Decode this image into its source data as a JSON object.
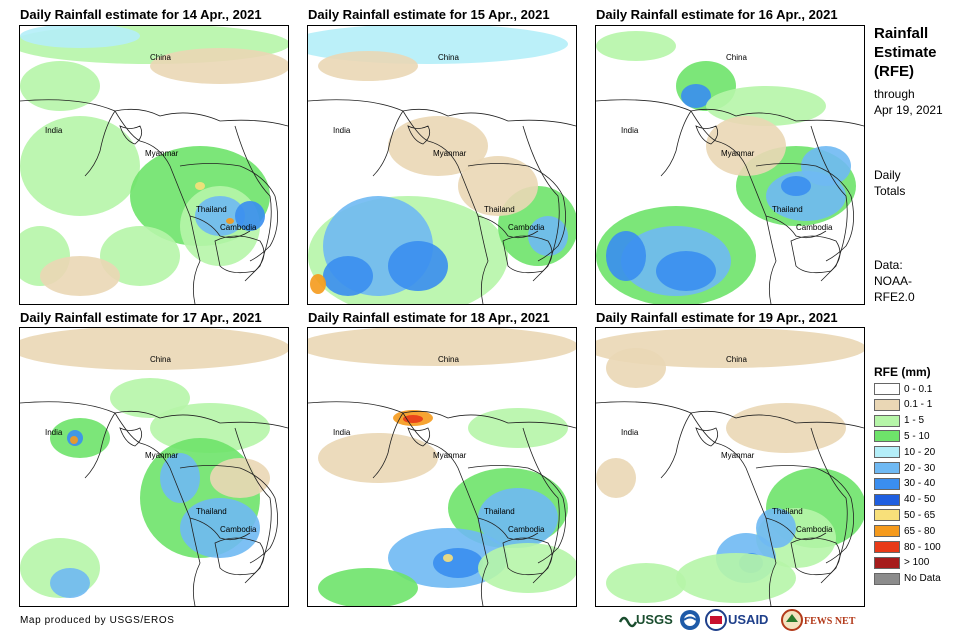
{
  "panels": [
    {
      "title": "Daily Rainfall estimate for 14 Apr., 2021",
      "labels": {
        "china": "China",
        "india": "India",
        "myanmar": "Myanmar",
        "thailand": "Thailand",
        "cambodia": "Cambodia"
      }
    },
    {
      "title": "Daily Rainfall estimate for 15 Apr., 2021",
      "labels": {
        "china": "China",
        "india": "India",
        "myanmar": "Myanmar",
        "thailand": "Thailand",
        "cambodia": "Cambodia"
      }
    },
    {
      "title": "Daily Rainfall estimate for 16 Apr., 2021",
      "labels": {
        "china": "China",
        "india": "India",
        "myanmar": "Myanmar",
        "thailand": "Thailand",
        "cambodia": "Cambodia"
      }
    },
    {
      "title": "Daily Rainfall estimate for 17 Apr., 2021",
      "labels": {
        "china": "China",
        "india": "India",
        "myanmar": "Myanmar",
        "thailand": "Thailand",
        "cambodia": "Cambodia"
      }
    },
    {
      "title": "Daily Rainfall estimate for 18 Apr., 2021",
      "labels": {
        "china": "China",
        "india": "India",
        "myanmar": "Myanmar",
        "thailand": "Thailand",
        "cambodia": "Cambodia"
      }
    },
    {
      "title": "Daily Rainfall estimate for 19 Apr., 2021",
      "labels": {
        "china": "China",
        "india": "India",
        "myanmar": "Myanmar",
        "thailand": "Thailand",
        "cambodia": "Cambodia"
      }
    }
  ],
  "sidebar": {
    "title_line1": "Rainfall",
    "title_line2": "Estimate",
    "title_line3": "(RFE)",
    "through": "through",
    "through_date": "Apr 19, 2021",
    "daily": "Daily",
    "totals": "Totals",
    "data_label": "Data:",
    "data_src1": "NOAA-",
    "data_src2": "RFE2.0"
  },
  "legend": {
    "title": "RFE (mm)",
    "items": [
      {
        "label": "0 - 0.1",
        "color": "#ffffff"
      },
      {
        "label": "0.1 - 1",
        "color": "#ead7b5"
      },
      {
        "label": "1 - 5",
        "color": "#b6f5a8"
      },
      {
        "label": "5 - 10",
        "color": "#6ee36a"
      },
      {
        "label": "10 - 20",
        "color": "#b4eef8"
      },
      {
        "label": "20 - 30",
        "color": "#6fb9f3"
      },
      {
        "label": "30 - 40",
        "color": "#3a8ef0"
      },
      {
        "label": "40 - 50",
        "color": "#1f5fe0"
      },
      {
        "label": "50 - 65",
        "color": "#f8e07a"
      },
      {
        "label": "65 - 80",
        "color": "#f59a1c"
      },
      {
        "label": "80 - 100",
        "color": "#e83a18"
      },
      {
        "label": "> 100",
        "color": "#a61c1c"
      },
      {
        "label": "No Data",
        "color": "#8c8c8c"
      }
    ]
  },
  "credit": "Map produced by USGS/EROS",
  "logos": {
    "usgs": "USGS",
    "usaid": "USAID",
    "fewsnet": "FEWS NET"
  }
}
